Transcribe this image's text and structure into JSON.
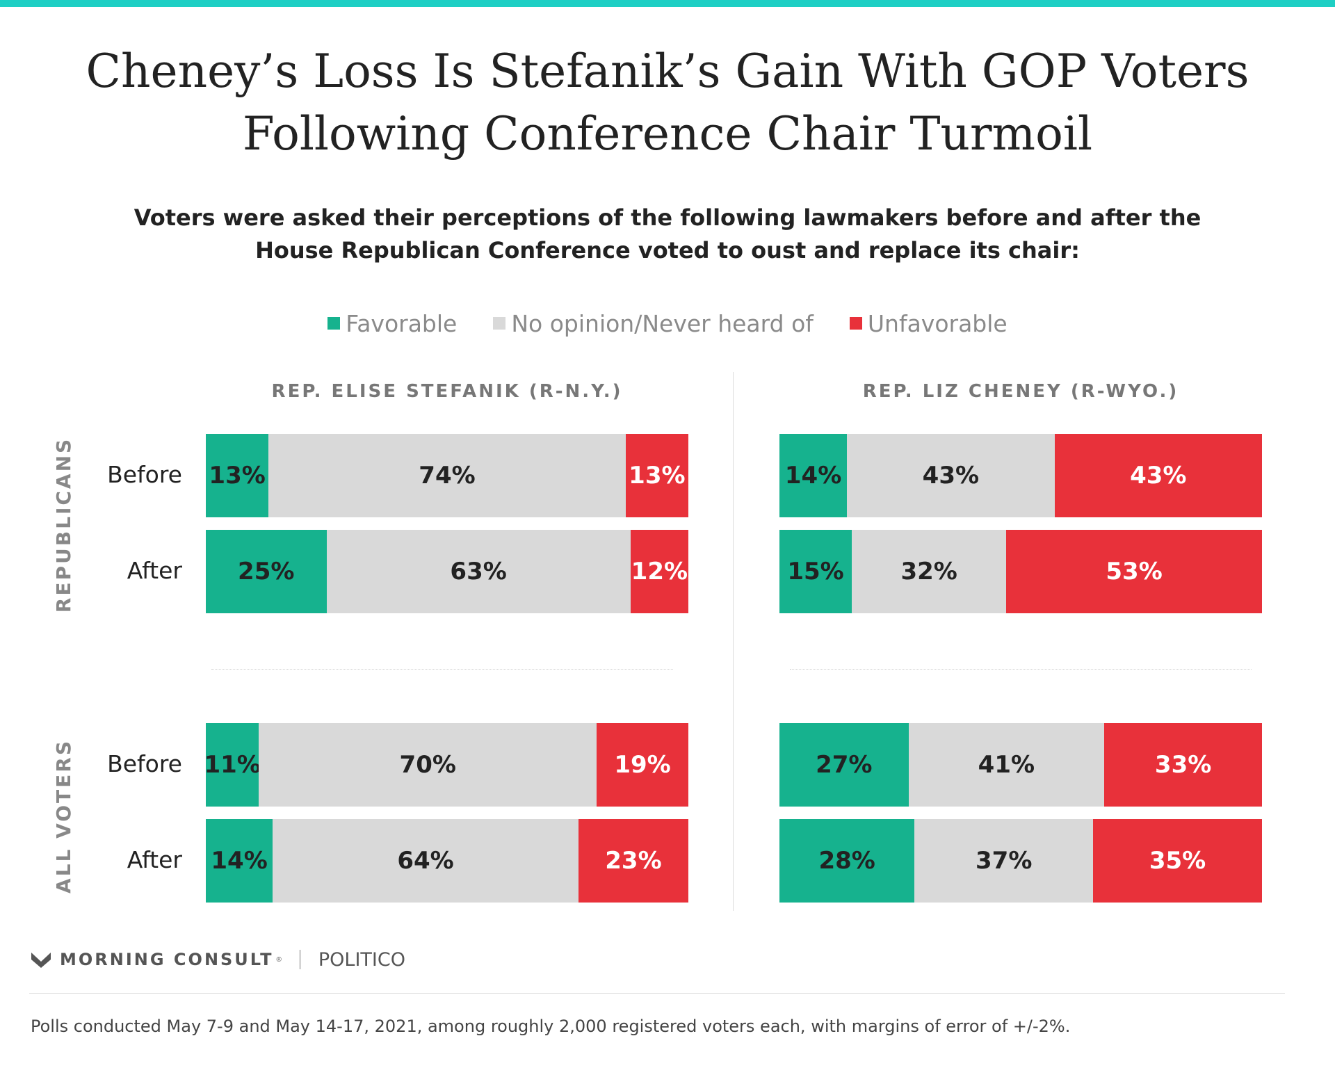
{
  "title_line1": "Cheney’s Loss Is Stefanik’s Gain With GOP Voters",
  "title_line2": "Following Conference Chair Turmoil",
  "subtitle_line1": "Voters were asked their perceptions of the following lawmakers before and after the",
  "subtitle_line2": "House Republican Conference voted to oust and replace its chair:",
  "legend": [
    {
      "label": "Favorable",
      "color": "#16b28e"
    },
    {
      "label": "No opinion/Never heard of",
      "color": "#d9d9d9"
    },
    {
      "label": "Unfavorable",
      "color": "#e8313a"
    }
  ],
  "groups": {
    "republicans": "REPUBLICANS",
    "all_voters": "ALL VOTERS"
  },
  "row_labels": {
    "before": "Before",
    "after": "After"
  },
  "panels": {
    "stefanik": "REP. ELISE STEFANIK (R-N.Y.)",
    "cheney": "REP. LIZ CHENEY (R-WYO.)"
  },
  "chart_data": {
    "type": "bar",
    "orientation": "horizontal-stacked-100",
    "series_names": [
      "Favorable",
      "No opinion/Never heard of",
      "Unfavorable"
    ],
    "panels": [
      {
        "name": "REP. ELISE STEFANIK (R-N.Y.)",
        "rows": [
          {
            "group": "REPUBLICANS",
            "label": "Before",
            "values": [
              13,
              74,
              13
            ],
            "labels": [
              "13%",
              "74%",
              "13%"
            ]
          },
          {
            "group": "REPUBLICANS",
            "label": "After",
            "values": [
              25,
              63,
              12
            ],
            "labels": [
              "25%",
              "63%",
              "12%"
            ]
          },
          {
            "group": "ALL VOTERS",
            "label": "Before",
            "values": [
              11,
              70,
              19
            ],
            "labels": [
              "11%",
              "70%",
              "19%"
            ]
          },
          {
            "group": "ALL VOTERS",
            "label": "After",
            "values": [
              14,
              64,
              23
            ],
            "labels": [
              "14%",
              "64%",
              "23%"
            ]
          }
        ]
      },
      {
        "name": "REP. LIZ CHENEY (R-WYO.)",
        "rows": [
          {
            "group": "REPUBLICANS",
            "label": "Before",
            "values": [
              14,
              43,
              43
            ],
            "labels": [
              "14%",
              "43%",
              "43%"
            ]
          },
          {
            "group": "REPUBLICANS",
            "label": "After",
            "values": [
              15,
              32,
              53
            ],
            "labels": [
              "15%",
              "32%",
              "53%"
            ]
          },
          {
            "group": "ALL VOTERS",
            "label": "Before",
            "values": [
              27,
              41,
              33
            ],
            "labels": [
              "27%",
              "41%",
              "33%"
            ]
          },
          {
            "group": "ALL VOTERS",
            "label": "After",
            "values": [
              28,
              37,
              35
            ],
            "labels": [
              "28%",
              "37%",
              "35%"
            ]
          }
        ]
      }
    ]
  },
  "footer": {
    "brand": "MORNING CONSULT",
    "trademark": "®",
    "partner": "POLITICO",
    "note": "Polls conducted May 7-9 and May 14-17, 2021, among roughly 2,000 registered voters each, with margins of error of +/-2%."
  }
}
